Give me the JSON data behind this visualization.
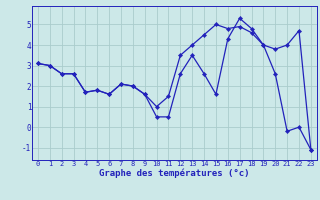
{
  "xlabel": "Graphe des températures (°c)",
  "background_color": "#cce8e8",
  "line_color": "#2222bb",
  "marker": "D",
  "markersize": 2.2,
  "linewidth": 0.9,
  "ylim": [
    -1.6,
    5.9
  ],
  "yticks": [
    -1,
    0,
    1,
    2,
    3,
    4,
    5
  ],
  "xticks": [
    0,
    1,
    2,
    3,
    4,
    5,
    6,
    7,
    8,
    9,
    10,
    11,
    12,
    13,
    14,
    15,
    16,
    17,
    18,
    19,
    20,
    21,
    22,
    23
  ],
  "grid_color": "#aacccc",
  "series1": [
    3.1,
    3.0,
    2.6,
    2.6,
    1.7,
    1.8,
    1.6,
    2.1,
    2.0,
    1.6,
    0.5,
    0.5,
    2.6,
    3.5,
    2.6,
    1.6,
    4.3,
    5.3,
    4.8,
    4.0,
    2.6,
    -0.2,
    0.0,
    -1.1
  ],
  "series2": [
    3.1,
    3.0,
    2.6,
    2.6,
    1.7,
    1.8,
    1.6,
    2.1,
    2.0,
    1.6,
    1.0,
    1.5,
    3.5,
    4.0,
    4.5,
    5.0,
    4.8,
    4.9,
    4.6,
    4.0,
    3.8,
    4.0,
    4.7,
    -1.1
  ],
  "tick_fontsize": 5.0,
  "xlabel_fontsize": 6.5,
  "xlabel_fontweight": "bold"
}
